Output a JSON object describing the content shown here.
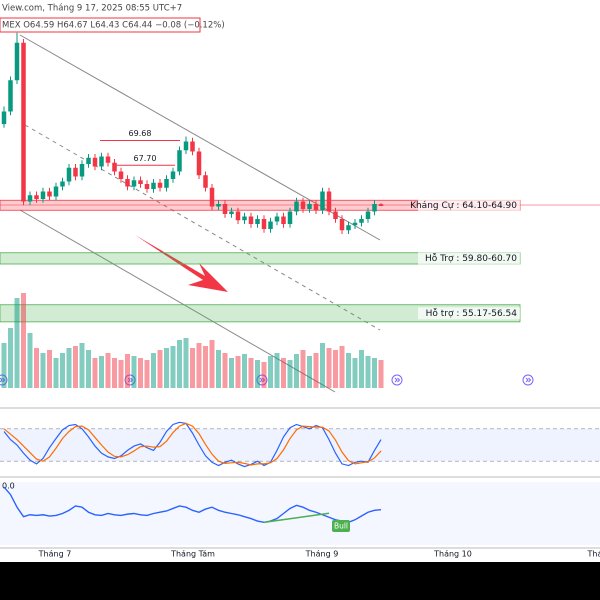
{
  "header": {
    "source": "View.com, Tháng 9 17, 2025 08:55 UTC+7",
    "quote": "MEX O64.59 H64.67 L64.43 C64.44 −0.08 (−0.12%)"
  },
  "chart_data": {
    "type": "candlestick",
    "ylim": [
      52,
      79
    ],
    "candles": [
      [
        71.0,
        72.4,
        70.7,
        72.0
      ],
      [
        72.0,
        74.8,
        71.7,
        74.5
      ],
      [
        74.5,
        78.3,
        74.2,
        77.5
      ],
      [
        77.5,
        77.8,
        64.5,
        64.8
      ],
      [
        64.8,
        65.6,
        64.5,
        65.3
      ],
      [
        65.3,
        65.6,
        64.7,
        65.0
      ],
      [
        65.0,
        65.9,
        64.7,
        65.6
      ],
      [
        65.6,
        65.9,
        64.9,
        65.2
      ],
      [
        65.2,
        66.3,
        64.9,
        66.0
      ],
      [
        66.0,
        66.7,
        65.7,
        66.4
      ],
      [
        66.4,
        67.8,
        66.1,
        67.5
      ],
      [
        67.5,
        67.8,
        66.5,
        66.8
      ],
      [
        66.8,
        68.1,
        66.5,
        67.8
      ],
      [
        67.8,
        68.6,
        67.5,
        68.3
      ],
      [
        68.3,
        68.6,
        67.3,
        67.6
      ],
      [
        67.6,
        68.7,
        67.3,
        68.4
      ],
      [
        68.4,
        68.7,
        67.6,
        67.9
      ],
      [
        67.9,
        68.2,
        66.9,
        67.2
      ],
      [
        67.2,
        67.5,
        66.3,
        66.6
      ],
      [
        66.6,
        66.9,
        65.7,
        66.0
      ],
      [
        66.0,
        66.8,
        65.7,
        66.5
      ],
      [
        66.5,
        66.8,
        65.9,
        66.2
      ],
      [
        66.2,
        66.5,
        65.5,
        65.8
      ],
      [
        65.8,
        66.6,
        65.5,
        66.3
      ],
      [
        66.3,
        66.6,
        65.6,
        65.9
      ],
      [
        65.9,
        66.9,
        65.6,
        66.6
      ],
      [
        66.6,
        67.5,
        66.3,
        67.2
      ],
      [
        67.2,
        69.2,
        66.9,
        68.9
      ],
      [
        68.9,
        70.0,
        68.6,
        69.6
      ],
      [
        69.6,
        69.9,
        68.5,
        68.8
      ],
      [
        68.8,
        69.1,
        66.6,
        66.9
      ],
      [
        66.9,
        67.2,
        65.6,
        65.9
      ],
      [
        65.9,
        66.2,
        64.1,
        64.4
      ],
      [
        64.4,
        64.9,
        64.1,
        64.6
      ],
      [
        64.6,
        64.9,
        63.5,
        63.8
      ],
      [
        63.8,
        64.3,
        63.5,
        64.0
      ],
      [
        64.0,
        64.3,
        63.0,
        63.3
      ],
      [
        63.3,
        63.9,
        63.0,
        63.6
      ],
      [
        63.6,
        63.9,
        62.7,
        63.0
      ],
      [
        63.0,
        63.7,
        62.7,
        63.4
      ],
      [
        63.4,
        63.7,
        62.3,
        62.6
      ],
      [
        62.6,
        63.5,
        62.3,
        63.2
      ],
      [
        63.2,
        63.9,
        62.9,
        63.6
      ],
      [
        63.6,
        63.9,
        62.7,
        63.0
      ],
      [
        63.0,
        64.3,
        62.7,
        64.0
      ],
      [
        64.0,
        65.1,
        63.7,
        64.8
      ],
      [
        64.8,
        65.1,
        63.9,
        64.2
      ],
      [
        64.2,
        64.9,
        63.9,
        64.6
      ],
      [
        64.6,
        64.9,
        63.8,
        64.1
      ],
      [
        64.1,
        65.9,
        63.8,
        65.6
      ],
      [
        65.6,
        65.9,
        63.7,
        64.0
      ],
      [
        64.0,
        64.3,
        63.1,
        63.4
      ],
      [
        63.4,
        63.7,
        62.2,
        62.5
      ],
      [
        62.5,
        63.2,
        62.2,
        62.9
      ],
      [
        62.9,
        63.4,
        62.6,
        63.1
      ],
      [
        63.1,
        63.7,
        62.8,
        63.4
      ],
      [
        63.4,
        64.3,
        63.1,
        64.0
      ],
      [
        64.0,
        64.9,
        63.7,
        64.6
      ],
      [
        64.59,
        64.67,
        64.43,
        64.44
      ]
    ],
    "up_color": "#089981",
    "down_color": "#f23645",
    "volume": [
      45,
      60,
      90,
      95,
      55,
      40,
      35,
      38,
      30,
      35,
      40,
      42,
      45,
      38,
      30,
      32,
      35,
      30,
      28,
      34,
      32,
      30,
      28,
      35,
      38,
      40,
      42,
      48,
      50,
      40,
      45,
      42,
      48,
      38,
      35,
      30,
      32,
      34,
      30,
      28,
      26,
      32,
      35,
      30,
      28,
      34,
      38,
      32,
      35,
      45,
      40,
      38,
      42,
      35,
      30,
      38,
      32,
      30,
      28
    ],
    "levels": [
      {
        "label": "Kháng Cự : 64.10-64.90",
        "low": 64.1,
        "high": 64.9,
        "color": "#f23645"
      },
      {
        "label": "Hỗ Trợ : 59.80-60.70",
        "low": 59.8,
        "high": 60.7,
        "color": "#4caf50"
      },
      {
        "label": "Hỗ trợ : 55.17-56.54",
        "low": 55.17,
        "high": 56.54,
        "color": "#4caf50"
      }
    ],
    "marks": [
      {
        "value": 69.68,
        "label": "69.68"
      },
      {
        "value": 67.7,
        "label": "67.70"
      }
    ],
    "x_labels": [
      "Tháng 7",
      "Tháng Tám",
      "Tháng 9",
      "Tháng 10",
      "Tháng"
    ],
    "stoch": {
      "ylim": [
        0,
        100
      ],
      "bands": [
        80,
        20
      ],
      "series": [
        {
          "color": "#2962ff",
          "values": [
            75,
            60,
            50,
            35,
            22,
            15,
            25,
            45,
            62,
            78,
            86,
            88,
            80,
            65,
            48,
            35,
            28,
            25,
            30,
            40,
            48,
            52,
            45,
            40,
            55,
            75,
            88,
            92,
            90,
            72,
            50,
            30,
            18,
            12,
            18,
            22,
            15,
            10,
            14,
            20,
            12,
            18,
            40,
            65,
            82,
            88,
            84,
            80,
            86,
            82,
            60,
            35,
            15,
            12,
            18,
            20,
            18,
            40,
            60
          ]
        },
        {
          "color": "#ff6d00",
          "values": [
            80,
            70,
            60,
            48,
            36,
            24,
            20,
            28,
            44,
            62,
            75,
            84,
            85,
            78,
            64,
            50,
            37,
            29,
            28,
            32,
            39,
            47,
            48,
            46,
            47,
            57,
            73,
            85,
            90,
            85,
            71,
            51,
            33,
            20,
            16,
            17,
            18,
            16,
            13,
            15,
            15,
            17,
            25,
            41,
            62,
            78,
            85,
            84,
            83,
            83,
            76,
            59,
            37,
            21,
            15,
            17,
            19,
            26,
            39
          ]
        }
      ]
    },
    "lower": {
      "ylim": [
        0,
        100
      ],
      "label": "0.0",
      "annotation": "Bull",
      "color": "#2962ff",
      "values": [
        92,
        80,
        60,
        45,
        48,
        47,
        48,
        46,
        47,
        50,
        55,
        62,
        60,
        52,
        48,
        47,
        50,
        48,
        47,
        49,
        50,
        48,
        47,
        50,
        52,
        54,
        58,
        62,
        60,
        55,
        52,
        57,
        60,
        55,
        52,
        50,
        48,
        45,
        42,
        38,
        36,
        38,
        42,
        50,
        58,
        63,
        60,
        55,
        52,
        48,
        44,
        40,
        38,
        36,
        40,
        46,
        52,
        55,
        56
      ]
    }
  }
}
